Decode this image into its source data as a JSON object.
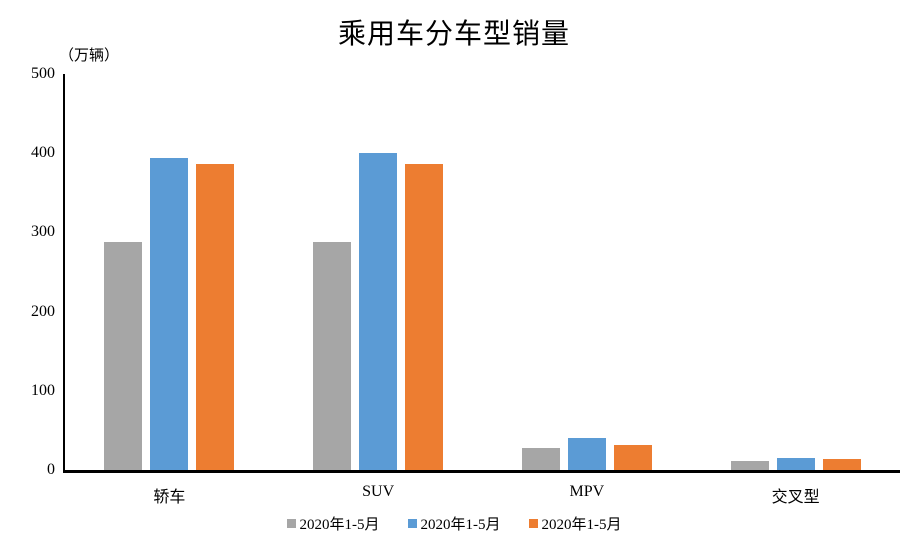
{
  "chart_data": {
    "type": "bar",
    "title": "乘用车分车型销量",
    "unit_label": "（万辆）",
    "categories": [
      "轿车",
      "SUV",
      "MPV",
      "交叉型"
    ],
    "series": [
      {
        "name": "2020年1-5月",
        "color": "#a6a6a6",
        "values": [
          288,
          288,
          28,
          12
        ]
      },
      {
        "name": "2020年1-5月",
        "color": "#5b9bd5",
        "values": [
          394,
          400,
          40,
          15
        ]
      },
      {
        "name": "2020年1-5月",
        "color": "#ed7d31",
        "values": [
          387,
          387,
          31,
          14
        ]
      }
    ],
    "ylim": [
      0,
      500
    ],
    "yticks": [
      0,
      100,
      200,
      300,
      400,
      500
    ],
    "grid": false,
    "legend_position": "bottom",
    "axis_color": "#000000",
    "background_color": "#ffffff"
  }
}
